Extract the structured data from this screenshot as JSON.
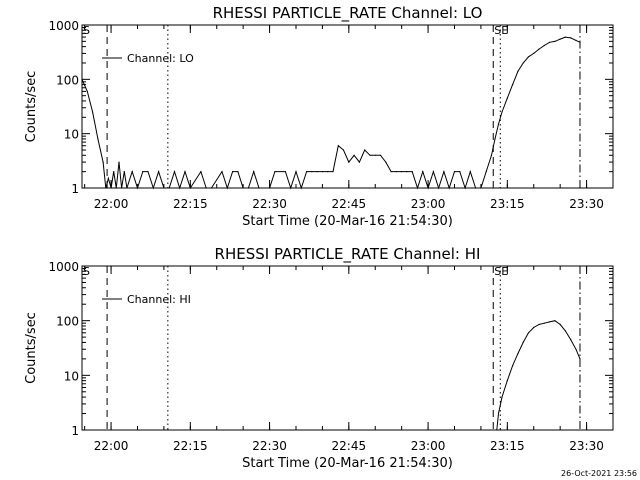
{
  "timestamp": "26-Oct-2021 23:56",
  "chart_data": [
    {
      "type": "line",
      "title": "RHESSI PARTICLE_RATE Channel: LO",
      "xlabel": "Start Time (20-Mar-16 21:54:30)",
      "ylabel": "Counts/sec",
      "yscale": "log",
      "xlim": [
        "21:54:30",
        "23:35:00"
      ],
      "ylim": [
        1,
        1000
      ],
      "x_ticks": [
        "22:00",
        "22:15",
        "22:30",
        "22:45",
        "23:00",
        "23:15",
        "23:30"
      ],
      "y_ticks": [
        "1",
        "10",
        "100",
        "1000"
      ],
      "legend": {
        "position": "top-left",
        "entries": [
          "Channel: LO"
        ]
      },
      "markers": [
        {
          "label": "S",
          "time": "21:54:30",
          "style": "dashed",
          "has_line": false
        },
        {
          "label": "",
          "time": "21:59:15",
          "style": "dashed",
          "has_line": true
        },
        {
          "label": "",
          "time": "22:10:45",
          "style": "dotted",
          "has_line": true
        },
        {
          "label": "SE",
          "time": "23:12:20",
          "style": "dashed",
          "has_line": true
        },
        {
          "label": "",
          "time": "23:13:40",
          "style": "dotted",
          "has_line": true
        },
        {
          "label": "",
          "time": "23:28:45",
          "style": "dashdot",
          "has_line": true
        }
      ],
      "series": [
        {
          "name": "Channel: LO",
          "x": [
            "21:54:30",
            "21:55:30",
            "21:56:30",
            "21:57:30",
            "21:58:30",
            "21:59:00",
            "21:59:30",
            "22:00:00",
            "22:00:30",
            "22:01:00",
            "22:01:30",
            "22:02:00",
            "22:02:30",
            "22:03:00",
            "22:04:00",
            "22:05:00",
            "22:06:00",
            "22:07:00",
            "22:08:00",
            "22:09:00",
            "22:10:00",
            "22:11:00",
            "22:12:00",
            "22:13:00",
            "22:14:00",
            "22:15:00",
            "22:17:00",
            "22:18:00",
            "22:19:00",
            "22:21:00",
            "22:22:00",
            "22:23:00",
            "22:24:00",
            "22:25:00",
            "22:26:00",
            "22:27:00",
            "22:28:00",
            "22:30:00",
            "22:31:00",
            "22:33:00",
            "22:34:00",
            "22:35:00",
            "22:36:00",
            "22:37:00",
            "22:38:00",
            "22:39:00",
            "22:40:00",
            "22:41:00",
            "22:42:00",
            "22:43:00",
            "22:44:00",
            "22:45:00",
            "22:46:00",
            "22:47:00",
            "22:48:00",
            "22:49:00",
            "22:50:00",
            "22:51:00",
            "22:52:00",
            "22:53:00",
            "22:54:00",
            "22:55:00",
            "22:56:00",
            "22:57:00",
            "22:58:00",
            "22:59:00",
            "23:00:00",
            "23:01:00",
            "23:02:00",
            "23:03:00",
            "23:04:00",
            "23:05:00",
            "23:06:00",
            "23:07:00",
            "23:08:00",
            "23:09:00",
            "23:10:00",
            "23:11:00",
            "23:12:00",
            "23:12:40",
            "23:13:20",
            "23:14:00",
            "23:15:00",
            "23:16:00",
            "23:17:00",
            "23:18:00",
            "23:19:00",
            "23:20:00",
            "23:21:00",
            "23:22:00",
            "23:23:00",
            "23:24:00",
            "23:25:00",
            "23:26:00",
            "23:27:00",
            "23:28:00",
            "23:28:45"
          ],
          "values": [
            100,
            60,
            25,
            8,
            3,
            1,
            1.5,
            1,
            2,
            1,
            3,
            1,
            2,
            1,
            2,
            1,
            2,
            2,
            1,
            2,
            1,
            1,
            2,
            1,
            2,
            1,
            2,
            1,
            1,
            2,
            1,
            2,
            2,
            1,
            1,
            2,
            1,
            1,
            2,
            2,
            1,
            2,
            1,
            2,
            2,
            2,
            2,
            2,
            2,
            6,
            5,
            3,
            4,
            3,
            5,
            4,
            4,
            4,
            3,
            2,
            2,
            2,
            2,
            2,
            1,
            2,
            1,
            2,
            1,
            2,
            1,
            2,
            2,
            1,
            2,
            1,
            1,
            2,
            4,
            8,
            15,
            25,
            45,
            80,
            140,
            200,
            260,
            300,
            360,
            420,
            480,
            500,
            550,
            600,
            580,
            520,
            480
          ]
        }
      ]
    },
    {
      "type": "line",
      "title": "RHESSI PARTICLE_RATE Channel: HI",
      "xlabel": "Start Time (20-Mar-16 21:54:30)",
      "ylabel": "Counts/sec",
      "yscale": "log",
      "xlim": [
        "21:54:30",
        "23:35:00"
      ],
      "ylim": [
        1,
        1000
      ],
      "x_ticks": [
        "22:00",
        "22:15",
        "22:30",
        "22:45",
        "23:00",
        "23:15",
        "23:30"
      ],
      "y_ticks": [
        "1",
        "10",
        "100",
        "1000"
      ],
      "legend": {
        "position": "top-left",
        "entries": [
          "Channel: HI"
        ]
      },
      "markers": [
        {
          "label": "S",
          "time": "21:54:30",
          "style": "dashed",
          "has_line": false
        },
        {
          "label": "",
          "time": "21:59:15",
          "style": "dashed",
          "has_line": true
        },
        {
          "label": "",
          "time": "22:10:45",
          "style": "dotted",
          "has_line": true
        },
        {
          "label": "SE",
          "time": "23:12:20",
          "style": "dashed",
          "has_line": true
        },
        {
          "label": "",
          "time": "23:13:40",
          "style": "dotted",
          "has_line": true
        },
        {
          "label": "",
          "time": "23:28:45",
          "style": "dashdot",
          "has_line": true
        }
      ],
      "series": [
        {
          "name": "Channel: HI",
          "x": [
            "23:13:00",
            "23:13:20",
            "23:14:00",
            "23:15:00",
            "23:16:00",
            "23:17:00",
            "23:18:00",
            "23:19:00",
            "23:20:00",
            "23:21:00",
            "23:22:00",
            "23:23:00",
            "23:24:00",
            "23:25:00",
            "23:26:00",
            "23:27:00",
            "23:28:00",
            "23:28:45"
          ],
          "values": [
            1,
            2,
            4,
            8,
            15,
            25,
            40,
            60,
            75,
            85,
            90,
            95,
            100,
            85,
            65,
            45,
            30,
            20
          ]
        }
      ]
    }
  ]
}
